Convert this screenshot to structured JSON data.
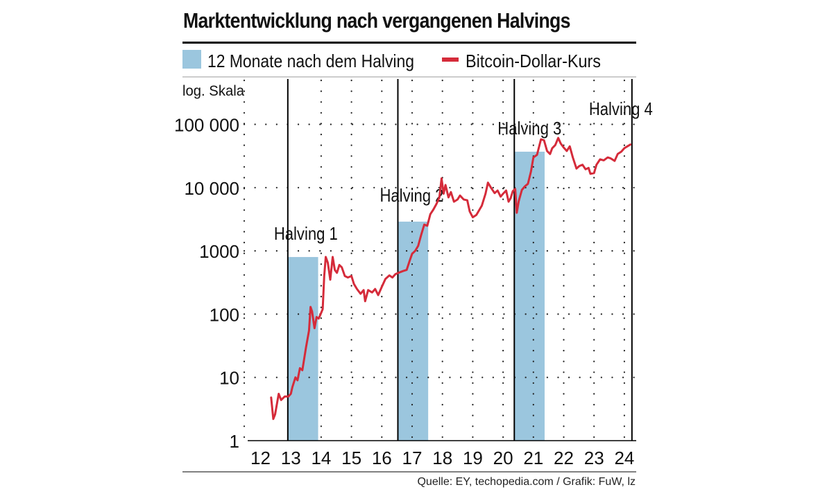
{
  "title": "Marktentwicklung nach vergangenen Halvings",
  "source": "Quelle: EY, techopedia.com / Grafik: FuW, lz",
  "colors": {
    "bar": "#9bc6de",
    "line": "#d52b3a",
    "text": "#111111",
    "grid": "#222222"
  },
  "chart_data": {
    "type": "line",
    "title": "Marktentwicklung nach vergangenen Halvings",
    "legend": [
      {
        "label": "12 Monate nach dem Halving",
        "kind": "bar",
        "color": "#9bc6de"
      },
      {
        "label": "Bitcoin-Dollar-Kurs",
        "kind": "line",
        "color": "#d52b3a"
      }
    ],
    "legend_position": "top",
    "ylabel": "log. Skala",
    "yscale": "log",
    "ylim": [
      1,
      100000
    ],
    "yticks": [
      {
        "value": 1,
        "label": "1"
      },
      {
        "value": 10,
        "label": "10"
      },
      {
        "value": 100,
        "label": "100"
      },
      {
        "value": 1000,
        "label": "1000"
      },
      {
        "value": 10000,
        "label": "10 000"
      },
      {
        "value": 100000,
        "label": "100 000"
      }
    ],
    "xlim": [
      2012,
      2024.3
    ],
    "xticks": [
      "12",
      "13",
      "14",
      "15",
      "16",
      "17",
      "18",
      "19",
      "20",
      "21",
      "22",
      "23",
      "24"
    ],
    "grid": true,
    "halvings": [
      {
        "label": "Halving 1",
        "x": 2012.9
      },
      {
        "label": "Halving 2",
        "x": 2016.53
      },
      {
        "label": "Halving 3",
        "x": 2020.37
      },
      {
        "label": "Halving 4",
        "x": 2024.25
      }
    ],
    "bars": [
      {
        "start": 2012.9,
        "end": 2013.9,
        "value": 800
      },
      {
        "start": 2016.53,
        "end": 2017.53,
        "value": 2900
      },
      {
        "start": 2020.37,
        "end": 2021.37,
        "value": 37000
      }
    ],
    "series": [
      {
        "name": "Bitcoin-Dollar-Kurs",
        "points": [
          [
            2012.35,
            4.8
          ],
          [
            2012.42,
            2.2
          ],
          [
            2012.48,
            2.6
          ],
          [
            2012.55,
            4.0
          ],
          [
            2012.6,
            5.5
          ],
          [
            2012.68,
            4.4
          ],
          [
            2012.8,
            5.0
          ],
          [
            2012.92,
            5.0
          ],
          [
            2013.0,
            5.5
          ],
          [
            2013.05,
            7.0
          ],
          [
            2013.15,
            10.0
          ],
          [
            2013.22,
            9.0
          ],
          [
            2013.3,
            14.0
          ],
          [
            2013.38,
            13.0
          ],
          [
            2013.5,
            30.0
          ],
          [
            2013.6,
            55.0
          ],
          [
            2013.65,
            130.0
          ],
          [
            2013.7,
            110.0
          ],
          [
            2013.78,
            60.0
          ],
          [
            2013.85,
            90.0
          ],
          [
            2013.92,
            85.0
          ],
          [
            2014.0,
            105.0
          ],
          [
            2014.05,
            120.0
          ],
          [
            2014.1,
            400.0
          ],
          [
            2014.15,
            800.0
          ],
          [
            2014.22,
            650.0
          ],
          [
            2014.3,
            350.0
          ],
          [
            2014.38,
            800.0
          ],
          [
            2014.45,
            500.0
          ],
          [
            2014.52,
            450.0
          ],
          [
            2014.6,
            600.0
          ],
          [
            2014.68,
            550.0
          ],
          [
            2014.78,
            400.0
          ],
          [
            2014.88,
            380.0
          ],
          [
            2015.0,
            400.0
          ],
          [
            2015.08,
            300.0
          ],
          [
            2015.18,
            250.0
          ],
          [
            2015.3,
            210.0
          ],
          [
            2015.4,
            240.0
          ],
          [
            2015.45,
            160.0
          ],
          [
            2015.55,
            240.0
          ],
          [
            2015.68,
            220.0
          ],
          [
            2015.78,
            250.0
          ],
          [
            2015.88,
            200.0
          ],
          [
            2016.0,
            270.0
          ],
          [
            2016.12,
            360.0
          ],
          [
            2016.25,
            410.0
          ],
          [
            2016.35,
            380.0
          ],
          [
            2016.45,
            430.0
          ],
          [
            2016.55,
            450.0
          ],
          [
            2016.7,
            480.0
          ],
          [
            2016.82,
            500.0
          ],
          [
            2016.92,
            700.0
          ],
          [
            2017.0,
            900.0
          ],
          [
            2017.1,
            1000.0
          ],
          [
            2017.2,
            1200.0
          ],
          [
            2017.3,
            1800.0
          ],
          [
            2017.4,
            2600.0
          ],
          [
            2017.5,
            2500.0
          ],
          [
            2017.6,
            3800.0
          ],
          [
            2017.7,
            4500.0
          ],
          [
            2017.8,
            5500.0
          ],
          [
            2017.9,
            7000.0
          ],
          [
            2017.97,
            14000.0
          ],
          [
            2018.04,
            8000.0
          ],
          [
            2018.1,
            11000.0
          ],
          [
            2018.2,
            7000.0
          ],
          [
            2018.28,
            8500.0
          ],
          [
            2018.38,
            6000.0
          ],
          [
            2018.5,
            6500.0
          ],
          [
            2018.58,
            7500.0
          ],
          [
            2018.7,
            6500.0
          ],
          [
            2018.82,
            6300.0
          ],
          [
            2018.9,
            4200.0
          ],
          [
            2019.0,
            3400.0
          ],
          [
            2019.12,
            3700.0
          ],
          [
            2019.3,
            5200.0
          ],
          [
            2019.42,
            8000.0
          ],
          [
            2019.5,
            12000.0
          ],
          [
            2019.6,
            10000.0
          ],
          [
            2019.72,
            8200.0
          ],
          [
            2019.82,
            9000.0
          ],
          [
            2019.92,
            7200.0
          ],
          [
            2020.0,
            8000.0
          ],
          [
            2020.1,
            9000.0
          ],
          [
            2020.18,
            6000.0
          ],
          [
            2020.25,
            6800.0
          ],
          [
            2020.32,
            8800.0
          ],
          [
            2020.4,
            9500.0
          ],
          [
            2020.45,
            4000.0
          ],
          [
            2020.52,
            6200.0
          ],
          [
            2020.62,
            9200.0
          ],
          [
            2020.72,
            10500.0
          ],
          [
            2020.82,
            11500.0
          ],
          [
            2020.92,
            18000.0
          ],
          [
            2021.0,
            30000.0
          ],
          [
            2021.12,
            33000.0
          ],
          [
            2021.25,
            58000.0
          ],
          [
            2021.35,
            56000.0
          ],
          [
            2021.45,
            38000.0
          ],
          [
            2021.55,
            34000.0
          ],
          [
            2021.62,
            42000.0
          ],
          [
            2021.72,
            47000.0
          ],
          [
            2021.82,
            61000.0
          ],
          [
            2021.9,
            50000.0
          ],
          [
            2022.0,
            43000.0
          ],
          [
            2022.1,
            38000.0
          ],
          [
            2022.2,
            45000.0
          ],
          [
            2022.3,
            30000.0
          ],
          [
            2022.42,
            20000.0
          ],
          [
            2022.52,
            22000.0
          ],
          [
            2022.62,
            23000.0
          ],
          [
            2022.72,
            19500.0
          ],
          [
            2022.82,
            20500.0
          ],
          [
            2022.88,
            16500.0
          ],
          [
            2023.0,
            17000.0
          ],
          [
            2023.08,
            23000.0
          ],
          [
            2023.2,
            28000.0
          ],
          [
            2023.32,
            27000.0
          ],
          [
            2023.45,
            30000.0
          ],
          [
            2023.55,
            29000.0
          ],
          [
            2023.68,
            26500.0
          ],
          [
            2023.78,
            34000.0
          ],
          [
            2023.9,
            37000.0
          ],
          [
            2024.0,
            42000.0
          ],
          [
            2024.1,
            45000.0
          ],
          [
            2024.2,
            48000.0
          ]
        ]
      }
    ]
  }
}
